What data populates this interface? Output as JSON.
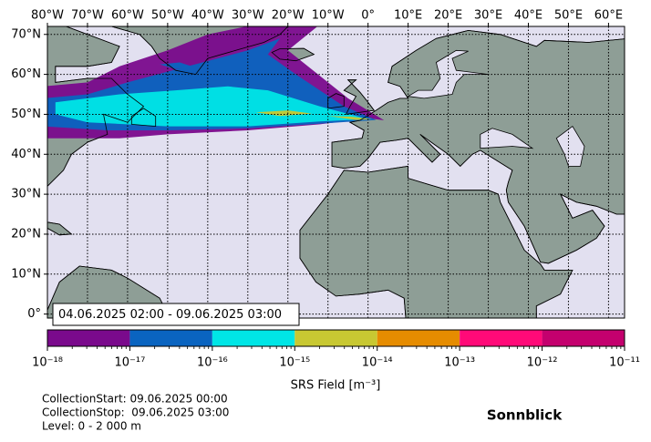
{
  "map": {
    "lonlim": [
      -80,
      64
    ],
    "latlim": [
      -1,
      72
    ],
    "lon_ticks": [
      {
        "value": -80,
        "label": "80°W"
      },
      {
        "value": -70,
        "label": "70°W"
      },
      {
        "value": -60,
        "label": "60°W"
      },
      {
        "value": -50,
        "label": "50°W"
      },
      {
        "value": -40,
        "label": "40°W"
      },
      {
        "value": -30,
        "label": "30°W"
      },
      {
        "value": -20,
        "label": "20°W"
      },
      {
        "value": -10,
        "label": "10°W"
      },
      {
        "value": 0,
        "label": "0°"
      },
      {
        "value": 10,
        "label": "10°E"
      },
      {
        "value": 20,
        "label": "20°E"
      },
      {
        "value": 30,
        "label": "30°E"
      },
      {
        "value": 40,
        "label": "40°E"
      },
      {
        "value": 50,
        "label": "50°E"
      },
      {
        "value": 60,
        "label": "60°E"
      }
    ],
    "lat_ticks": [
      {
        "value": 0,
        "label": "0°"
      },
      {
        "value": 10,
        "label": "10°N"
      },
      {
        "value": 20,
        "label": "20°N"
      },
      {
        "value": 30,
        "label": "30°N"
      },
      {
        "value": 40,
        "label": "40°N"
      },
      {
        "value": 50,
        "label": "50°N"
      },
      {
        "value": 60,
        "label": "60°N"
      },
      {
        "value": 70,
        "label": "70°N"
      }
    ],
    "grid": true,
    "time_range": "04.06.2025 02:00 - 09.06.2025 03:00",
    "colorbar": {
      "scale": "log",
      "label": "SRS Field [m⁻³]",
      "ticks": [
        {
          "value": 1e-18,
          "label": "10⁻¹⁸"
        },
        {
          "value": 1e-17,
          "label": "10⁻¹⁷"
        },
        {
          "value": 1e-16,
          "label": "10⁻¹⁶"
        },
        {
          "value": 1e-15,
          "label": "10⁻¹⁵"
        },
        {
          "value": 1e-14,
          "label": "10⁻¹⁴"
        },
        {
          "value": 1e-13,
          "label": "10⁻¹³"
        },
        {
          "value": 1e-12,
          "label": "10⁻¹²"
        },
        {
          "value": 1e-11,
          "label": "10⁻¹¹"
        }
      ],
      "colors": [
        "#7a0a8c",
        "#0a64c0",
        "#00e6e6",
        "#c8c832",
        "#e68c00",
        "#ff0a78",
        "#c4006e"
      ]
    }
  },
  "info": [
    "CollectionStart: 09.06.2025 00:00",
    "CollectionStop:  09.06.2025 03:00",
    "Level: 0 - 2 000 m"
  ],
  "station": "Sonnblick"
}
